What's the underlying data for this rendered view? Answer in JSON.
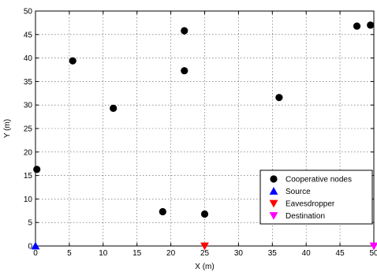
{
  "chart_data": {
    "type": "scatter",
    "xlabel": "X (m)",
    "ylabel": "Y (m)",
    "xlim": [
      0,
      50
    ],
    "ylim": [
      0,
      50
    ],
    "xticks": [
      0,
      5,
      10,
      15,
      20,
      25,
      30,
      35,
      40,
      45,
      50
    ],
    "yticks": [
      0,
      5,
      10,
      15,
      20,
      25,
      30,
      35,
      40,
      45,
      50
    ],
    "grid": true,
    "legend_position": "bottom-right",
    "series": [
      {
        "name": "Cooperative nodes",
        "marker": "circle",
        "color": "#000000",
        "points": [
          {
            "x": 0.2,
            "y": 16.3
          },
          {
            "x": 5.5,
            "y": 39.4
          },
          {
            "x": 11.5,
            "y": 29.3
          },
          {
            "x": 18.8,
            "y": 7.3
          },
          {
            "x": 22.0,
            "y": 45.8
          },
          {
            "x": 22.0,
            "y": 37.3
          },
          {
            "x": 25.0,
            "y": 6.8
          },
          {
            "x": 36.0,
            "y": 31.6
          },
          {
            "x": 47.5,
            "y": 46.8
          },
          {
            "x": 49.5,
            "y": 47.0
          }
        ]
      },
      {
        "name": "Source",
        "marker": "triangle-up",
        "color": "#0000ff",
        "points": [
          {
            "x": 0,
            "y": 0
          }
        ]
      },
      {
        "name": "Eavesdropper",
        "marker": "triangle-down",
        "color": "#ff0000",
        "points": [
          {
            "x": 25,
            "y": 0
          }
        ]
      },
      {
        "name": "Destination",
        "marker": "triangle-down",
        "color": "#ff00ff",
        "points": [
          {
            "x": 50,
            "y": 0
          }
        ]
      }
    ]
  }
}
